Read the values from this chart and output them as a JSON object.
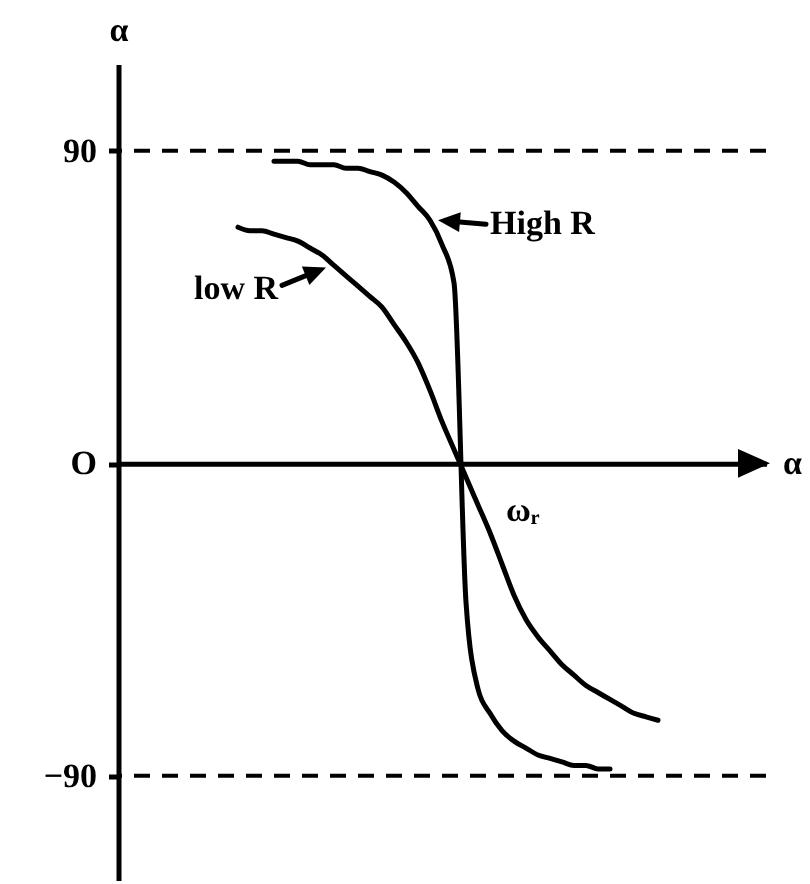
{
  "chart_data": {
    "type": "line",
    "xlabel": "α",
    "ylabel": "α",
    "categories": [
      null,
      null,
      null,
      null,
      null,
      null,
      null,
      null,
      null,
      null,
      null,
      null,
      null,
      null,
      null,
      null,
      null,
      null,
      null,
      null,
      null,
      null,
      null,
      null,
      null,
      null,
      null,
      null,
      null,
      null,
      null,
      null,
      null,
      null,
      null,
      null,
      null,
      null,
      null,
      null,
      null,
      null,
      null,
      null,
      null,
      null,
      null,
      null,
      null,
      null,
      null,
      null,
      null,
      null,
      null
    ],
    "series": [
      {
        "name": "High R",
        "color": "#000000",
        "values": [
          null,
          null,
          null,
          null,
          null,
          null,
          null,
          null,
          null,
          null,
          null,
          null,
          null,
          87,
          87,
          87,
          86,
          86,
          86,
          85,
          85,
          84,
          83,
          81,
          78,
          74,
          70,
          63,
          52,
          -40,
          -65,
          -72,
          -77,
          -80,
          -82,
          -84,
          -85,
          -86,
          -87,
          -87,
          -88,
          -88,
          null,
          null,
          null,
          null,
          null,
          null,
          null,
          null,
          null,
          null,
          null,
          null,
          null
        ]
      },
      {
        "name": "low R",
        "color": "#000000",
        "values": [
          null,
          null,
          null,
          null,
          null,
          null,
          null,
          null,
          null,
          null,
          68,
          67,
          67,
          66,
          65,
          64,
          62,
          60,
          57,
          54,
          51,
          48,
          45,
          40,
          35,
          29,
          21,
          12,
          4,
          -4,
          -12,
          -20,
          -29,
          -38,
          -45,
          -50,
          -54,
          -58,
          -61,
          -64,
          -66,
          -68,
          -70,
          -72,
          -73,
          -74,
          null,
          null,
          null,
          null,
          null,
          null,
          null,
          null,
          null
        ]
      }
    ],
    "ylim": [
      -120,
      115
    ],
    "yticks": [
      90,
      {
        "value": 0,
        "label": "O"
      },
      -90
    ],
    "ref_lines": [
      {
        "axis": "y",
        "value": 90,
        "line_style": "dashed",
        "color": "#000000"
      },
      {
        "axis": "y",
        "value": -90,
        "line_style": "dashed",
        "color": "#000000"
      }
    ],
    "annotations": [
      "ωᵣ"
    ],
    "tick_labels": "y"
  }
}
